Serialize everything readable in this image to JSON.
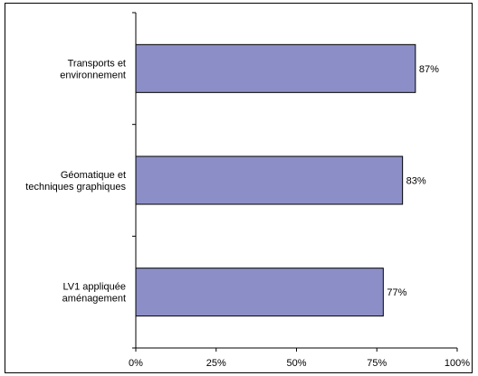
{
  "chart_data": {
    "type": "bar",
    "orientation": "horizontal",
    "categories": [
      [
        "Transports et",
        "environnement"
      ],
      [
        "Géomatique et",
        "techniques graphiques"
      ],
      [
        "LV1 appliquée",
        "aménagement"
      ]
    ],
    "values": [
      87,
      83,
      77
    ],
    "data_labels": [
      "87%",
      "83%",
      "77%"
    ],
    "x_ticks": [
      "0%",
      "25%",
      "50%",
      "75%",
      "100%"
    ],
    "xlim": [
      0,
      100
    ],
    "bar_color": "#8c8fc7",
    "grid": false,
    "legend": false,
    "title": "",
    "xlabel": "",
    "ylabel": ""
  }
}
